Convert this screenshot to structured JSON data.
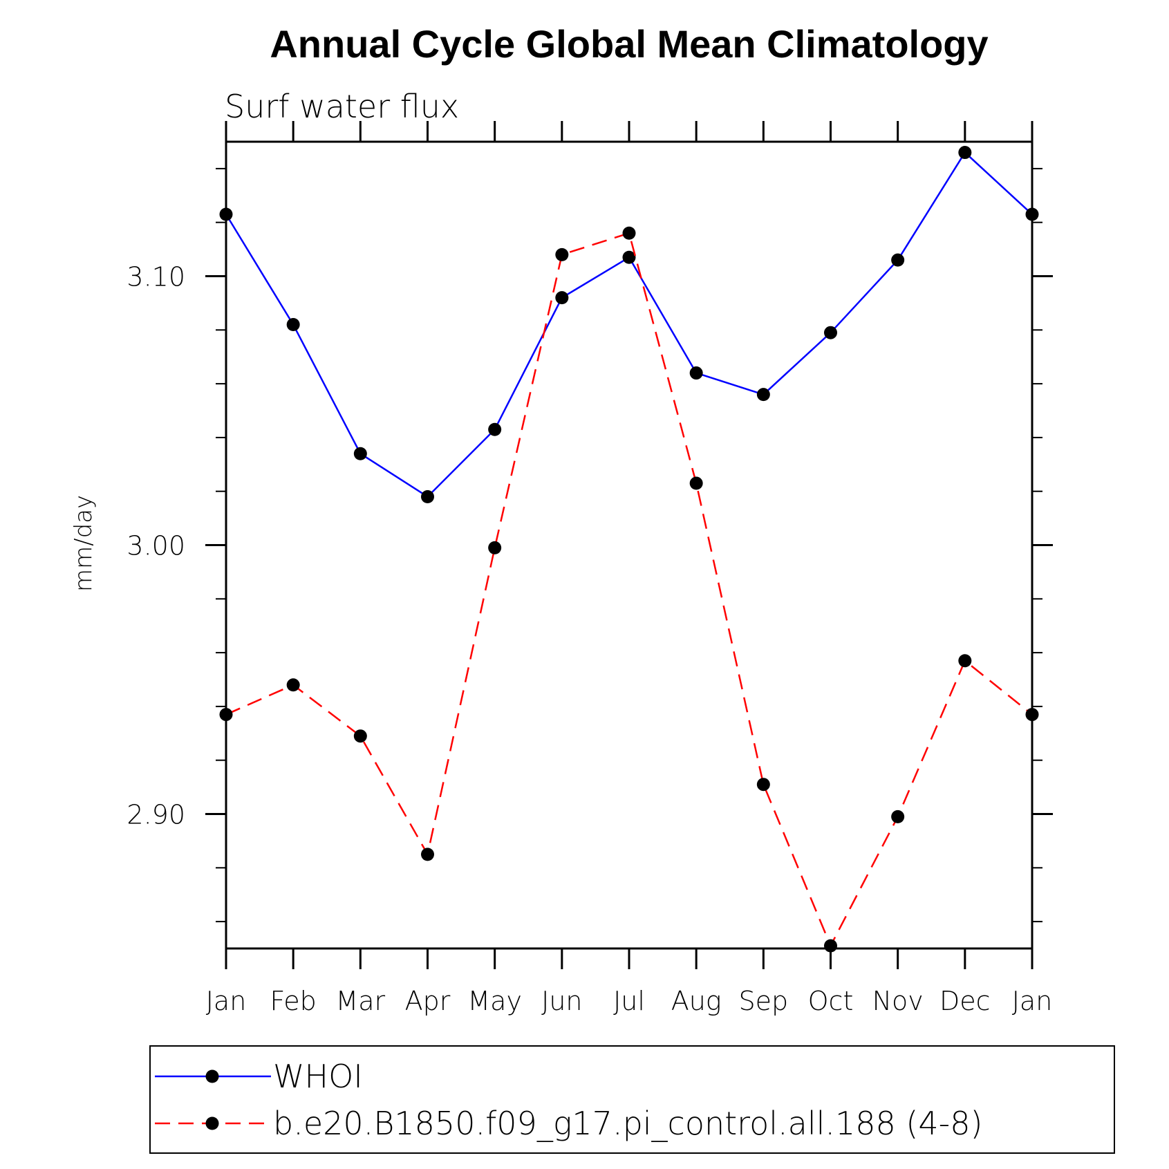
{
  "chart_data": {
    "type": "line",
    "title": "Annual Cycle Global Mean Climatology",
    "subtitle": "Surf water flux",
    "xlabel": "",
    "ylabel": "mm/day",
    "categories": [
      "Jan",
      "Feb",
      "Mar",
      "Apr",
      "May",
      "Jun",
      "Jul",
      "Aug",
      "Sep",
      "Oct",
      "Nov",
      "Dec",
      "Jan"
    ],
    "ylim": [
      2.85,
      3.15
    ],
    "yticks": [
      {
        "value": 2.9,
        "label": "2.90"
      },
      {
        "value": 3.0,
        "label": "3.00"
      },
      {
        "value": 3.1,
        "label": "3.10"
      }
    ],
    "y_minor_step": 0.02,
    "grid": false,
    "series": [
      {
        "name": "WHOI",
        "color": "#0000ff",
        "dash": "solid",
        "values": [
          3.123,
          3.082,
          3.034,
          3.018,
          3.043,
          3.092,
          3.107,
          3.064,
          3.056,
          3.079,
          3.106,
          3.146,
          3.123
        ]
      },
      {
        "name": "b.e20.B1850.f09_g17.pi_control.all.188 (4-8)",
        "color": "#ff0000",
        "dash": "dashed",
        "values": [
          2.937,
          2.948,
          2.929,
          2.885,
          2.999,
          3.108,
          3.116,
          3.023,
          2.911,
          2.851,
          2.899,
          2.957,
          2.937
        ]
      }
    ],
    "legend_position": "bottom"
  }
}
